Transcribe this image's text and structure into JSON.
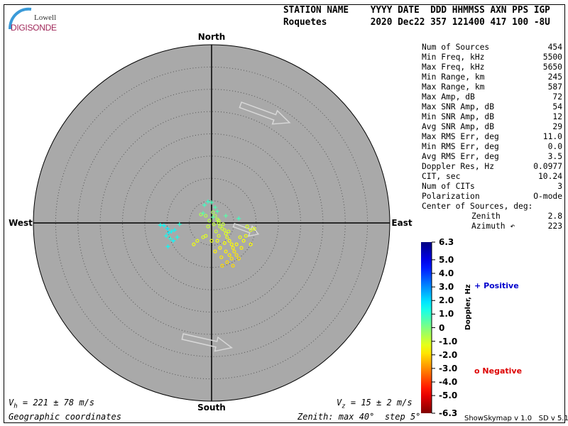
{
  "logo": {
    "line1": "Lowell",
    "line2": "DIGISONDE"
  },
  "header": {
    "labels": "STATION NAME    YYYY DATE  DDD HHMMSS AXN PPS IGP",
    "values": "Roquetes        2020 Dec22 357 121400 417 100 -8U"
  },
  "stats": [
    {
      "label": "Num of Sources",
      "value": "454"
    },
    {
      "label": "Min Freq, kHz",
      "value": "5500"
    },
    {
      "label": "Max Freq, kHz",
      "value": "5650"
    },
    {
      "label": "Min Range, km",
      "value": "245"
    },
    {
      "label": "Max Range, km",
      "value": "587"
    },
    {
      "label": "Max Amp, dB",
      "value": "72"
    },
    {
      "label": "Max SNR Amp, dB",
      "value": "54"
    },
    {
      "label": "Min SNR Amp, dB",
      "value": "12"
    },
    {
      "label": "Avg SNR Amp, dB",
      "value": "29"
    },
    {
      "label": "Max RMS Err, deg",
      "value": "11.0"
    },
    {
      "label": "Min RMS Err, deg",
      "value": "0.0"
    },
    {
      "label": "Avg RMS Err, deg",
      "value": "3.5"
    },
    {
      "label": "Doppler Res, Hz",
      "value": "0.0977"
    },
    {
      "label": "CIT, sec",
      "value": "10.24"
    },
    {
      "label": "Num of CITs",
      "value": "3"
    },
    {
      "label": "Polarization",
      "value": "O-mode"
    }
  ],
  "center": {
    "title": "Center of Sources, deg:",
    "zenith_label": "Zenith",
    "zenith": "2.8",
    "azimuth_label": "Azimuth ↶",
    "azimuth": "223"
  },
  "compass": {
    "north": "North",
    "south": "South",
    "east": "East",
    "west": "West"
  },
  "footer": {
    "vh": "V",
    "vh_sub": "h",
    "vh_value": " = 221 ± 78 m/s",
    "vz": "V",
    "vz_sub": "z",
    "vz_value": " = 15 ± 2 m/s",
    "coords": "Geographic coordinates",
    "zenith_info": "Zenith: max 40°  step 5°",
    "version": "ShowSkymap v 1.0   SD v 5.1"
  },
  "legend": {
    "positive": "Positive",
    "negative": "Negative",
    "positive_color": "#0000cc",
    "negative_color": "#dd0000"
  },
  "chart_data": {
    "type": "scatter",
    "projection": "polar skymap (zenith angle radial, azimuth)",
    "zenith_max_deg": 40,
    "zenith_step_deg": 5,
    "plot_background": "#a9a9a9",
    "colorbar": {
      "label": "Doppler, Hz",
      "range": [
        -6.3,
        6.3
      ],
      "ticks": [
        "6.3",
        "5.0",
        "4.0",
        "3.0",
        "2.0",
        "1.0",
        "0",
        "-1.0",
        "-2.0",
        "-3.0",
        "-4.0",
        "-5.0",
        "-6.3"
      ]
    },
    "drift_vectors": [
      {
        "from": [
          6.5,
          26.5
        ],
        "to": [
          17.5,
          22.5
        ]
      },
      {
        "from": [
          -6.5,
          -25.5
        ],
        "to": [
          4.5,
          -28.0
        ]
      },
      {
        "from": [
          5.0,
          -0.5
        ],
        "to": [
          10.5,
          -2.5
        ]
      }
    ],
    "point_fields": [
      "east_deg",
      "north_deg",
      "doppler_hz"
    ],
    "positive_points": [
      [
        -10.7,
        -0.6,
        1.6
      ],
      [
        -9.9,
        -1.3,
        1.8
      ],
      [
        -9.0,
        -1.9,
        1.5
      ],
      [
        -9.6,
        -2.2,
        1.7
      ],
      [
        -10.2,
        -2.9,
        1.4
      ],
      [
        -8.3,
        -1.6,
        1.6
      ],
      [
        -9.3,
        -3.5,
        1.2
      ],
      [
        -7.7,
        -3.2,
        1.3
      ],
      [
        -9.8,
        -5.3,
        1.5
      ],
      [
        -11.5,
        -0.5,
        1.4
      ],
      [
        -7.2,
        -0.3,
        1.1
      ],
      [
        -8.6,
        -4.0,
        1.6
      ],
      [
        -1.6,
        4.0,
        0.8
      ],
      [
        -0.8,
        4.8,
        0.9
      ],
      [
        0.0,
        4.6,
        0.7
      ],
      [
        0.8,
        3.5,
        0.6
      ],
      [
        3.2,
        1.6,
        0.5
      ],
      [
        6.1,
        1.0,
        0.8
      ],
      [
        -1.9,
        2.2,
        0.6
      ],
      [
        1.3,
        2.6,
        0.7
      ],
      [
        0.3,
        1.3,
        0.5
      ]
    ],
    "negative_points": [
      [
        0.3,
        2.4,
        -0.5
      ],
      [
        0.8,
        1.6,
        -0.6
      ],
      [
        1.3,
        0.8,
        -0.7
      ],
      [
        1.6,
        0.0,
        -0.8
      ],
      [
        0.5,
        -0.3,
        -0.8
      ],
      [
        1.9,
        -0.8,
        -0.9
      ],
      [
        2.4,
        -1.3,
        -1.0
      ],
      [
        2.9,
        -1.6,
        -1.1
      ],
      [
        1.0,
        -1.9,
        -1.0
      ],
      [
        3.2,
        -2.4,
        -1.2
      ],
      [
        3.5,
        -3.2,
        -1.3
      ],
      [
        1.6,
        -2.9,
        -1.2
      ],
      [
        4.0,
        -4.0,
        -1.5
      ],
      [
        4.5,
        -4.8,
        -1.6
      ],
      [
        2.9,
        -4.5,
        -1.5
      ],
      [
        4.8,
        -5.6,
        -1.7
      ],
      [
        5.1,
        -6.4,
        -1.8
      ],
      [
        4.0,
        -7.2,
        -1.8
      ],
      [
        5.6,
        -7.2,
        -1.9
      ],
      [
        4.5,
        -8.0,
        -1.9
      ],
      [
        3.5,
        -8.8,
        -2.0
      ],
      [
        2.4,
        -9.6,
        -2.0
      ],
      [
        4.8,
        -9.6,
        -2.0
      ],
      [
        0.0,
        -4.0,
        -1.3
      ],
      [
        -1.3,
        -2.9,
        -1.2
      ],
      [
        -1.9,
        -3.2,
        -1.2
      ],
      [
        -3.2,
        -4.0,
        -1.3
      ],
      [
        -4.0,
        -4.8,
        -1.4
      ],
      [
        6.1,
        -8.0,
        -1.9
      ],
      [
        6.4,
        -3.2,
        -1.4
      ],
      [
        7.2,
        -4.0,
        -1.5
      ],
      [
        8.0,
        -0.8,
        -1.1
      ],
      [
        8.8,
        -1.6,
        -1.2
      ],
      [
        9.6,
        -1.3,
        -1.2
      ],
      [
        7.7,
        -2.9,
        -1.4
      ],
      [
        -2.4,
        1.9,
        -0.6
      ],
      [
        -1.3,
        1.6,
        -0.6
      ],
      [
        -0.8,
        -0.8,
        -0.9
      ],
      [
        1.3,
        -4.0,
        -1.4
      ],
      [
        1.9,
        -5.6,
        -1.6
      ],
      [
        0.8,
        -6.4,
        -1.7
      ],
      [
        3.2,
        -6.4,
        -1.7
      ],
      [
        2.2,
        -7.7,
        -1.8
      ],
      [
        1.6,
        0.5,
        -0.8
      ],
      [
        2.6,
        -0.3,
        -0.9
      ],
      [
        3.8,
        -1.9,
        -1.1
      ],
      [
        5.6,
        -4.8,
        -1.6
      ],
      [
        6.7,
        -5.6,
        -1.7
      ],
      [
        8.8,
        -4.8,
        -1.6
      ],
      [
        -0.5,
        0.5,
        -0.7
      ]
    ]
  }
}
